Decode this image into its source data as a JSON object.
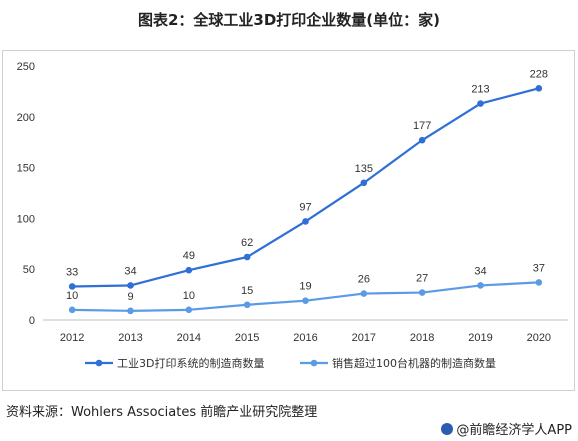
{
  "title": "图表2：全球工业3D打印企业数量(单位：家)",
  "source": "资料来源：Wohlers Associates 前瞻产业研究院整理",
  "brand": "@前瞻经济学人APP",
  "chart_data": {
    "type": "line",
    "title": "图表2：全球工业3D打印企业数量(单位：家)",
    "categories": [
      "2012",
      "2013",
      "2014",
      "2015",
      "2016",
      "2017",
      "2018",
      "2019",
      "2020"
    ],
    "ylim": [
      0,
      250
    ],
    "yticks": [
      0,
      50,
      100,
      150,
      200,
      250
    ],
    "grid": false,
    "legend_position": "bottom",
    "series": [
      {
        "name": "工业3D打印系统的制造商数量",
        "color": "#2f6fd6",
        "values": [
          33,
          34,
          49,
          62,
          97,
          135,
          177,
          213,
          228
        ]
      },
      {
        "name": "销售超过100台机器的制造商数量",
        "color": "#5b9be6",
        "values": [
          10,
          9,
          10,
          15,
          19,
          26,
          27,
          34,
          37
        ]
      }
    ]
  }
}
